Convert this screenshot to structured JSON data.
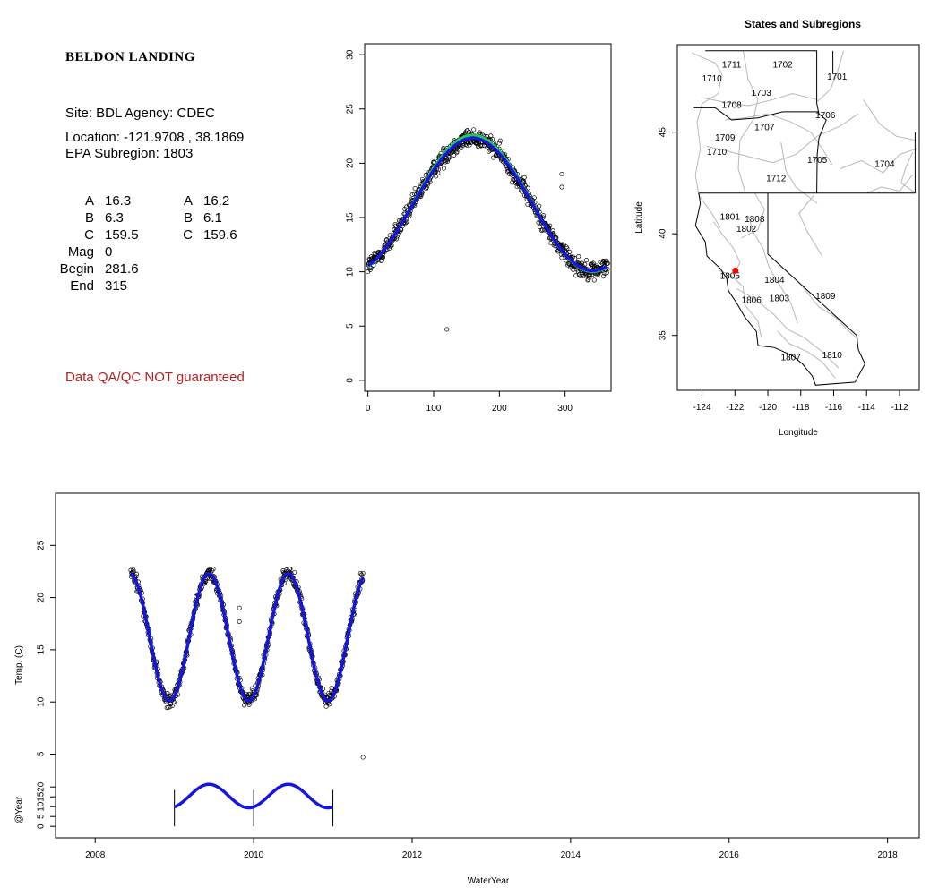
{
  "site": {
    "name": "BELDON LANDING",
    "site_line": "Site: BDL     Agency: CDEC",
    "location_line": "Location: -121.9708 , 38.1869",
    "subregion_line": "EPA Subregion: 1803",
    "disclaimer": "Data QA/QC NOT guaranteed"
  },
  "params": {
    "rows": [
      {
        "label": "A",
        "v1": "16.3",
        "label2": "A",
        "v2": "16.2"
      },
      {
        "label": "B",
        "v1": "6.3",
        "label2": "B",
        "v2": "6.1"
      },
      {
        "label": "C",
        "v1": "159.5",
        "label2": "C",
        "v2": "159.6"
      },
      {
        "label": "Mag",
        "v1": "0",
        "label2": "",
        "v2": ""
      },
      {
        "label": "Begin",
        "v1": "281.6",
        "label2": "",
        "v2": ""
      },
      {
        "label": "End",
        "v1": "315",
        "label2": "",
        "v2": ""
      }
    ]
  },
  "colors": {
    "fit_blue": "#1515e0",
    "fit_green": "#22c55e",
    "site_marker": "#ff0000",
    "disclaimer": "#b22222",
    "region_border": "#b8b8b8",
    "state_border": "#000000"
  },
  "chart_data": [
    {
      "id": "annual-scatter",
      "type": "scatter",
      "title": "",
      "xlabel": "",
      "ylabel": "",
      "xlim": [
        -5,
        370
      ],
      "ylim": [
        -1,
        31
      ],
      "xticks": [
        0,
        100,
        200,
        300
      ],
      "yticks": [
        0,
        5,
        10,
        15,
        20,
        25,
        30
      ],
      "fit_blue": {
        "A": 16.2,
        "B": 6.1,
        "C": 159.6
      },
      "fit_green": {
        "A": 16.3,
        "B": 6.3,
        "C": 159.5
      },
      "noise": 1.1,
      "outliers": [
        [
          120,
          4.7
        ],
        [
          295,
          12.4
        ],
        [
          295,
          17.8
        ],
        [
          295,
          19.0
        ]
      ],
      "fit_range": [
        0,
        365
      ],
      "points_range": [
        0,
        365
      ]
    },
    {
      "id": "subregion-map",
      "type": "map",
      "title": "States and Subregions",
      "xlabel": "Longitude",
      "ylabel": "Latitude",
      "xlim": [
        -125.5,
        -110.8
      ],
      "ylim": [
        32.3,
        49.3
      ],
      "xticks": [
        -124,
        -122,
        -120,
        -118,
        -116,
        -114,
        -112
      ],
      "yticks": [
        35,
        40,
        45
      ],
      "site": {
        "lon": -121.9708,
        "lat": 38.1869
      },
      "region_labels": [
        {
          "text": "1702",
          "lon": -119.1,
          "lat": 48.3
        },
        {
          "text": "1701",
          "lon": -115.8,
          "lat": 47.7
        },
        {
          "text": "1711",
          "lon": -122.2,
          "lat": 48.3
        },
        {
          "text": "1710",
          "lon": -123.4,
          "lat": 47.6
        },
        {
          "text": "1703",
          "lon": -120.4,
          "lat": 46.9
        },
        {
          "text": "1708",
          "lon": -122.2,
          "lat": 46.3
        },
        {
          "text": "1706",
          "lon": -116.5,
          "lat": 45.8
        },
        {
          "text": "1707",
          "lon": -120.2,
          "lat": 45.2
        },
        {
          "text": "1709",
          "lon": -122.6,
          "lat": 44.7
        },
        {
          "text": "1710",
          "lon": -123.1,
          "lat": 44.0
        },
        {
          "text": "1705",
          "lon": -117.0,
          "lat": 43.6
        },
        {
          "text": "1704",
          "lon": -112.9,
          "lat": 43.4
        },
        {
          "text": "1712",
          "lon": -119.5,
          "lat": 42.7
        },
        {
          "text": "1801",
          "lon": -122.3,
          "lat": 40.8
        },
        {
          "text": "1808",
          "lon": -120.8,
          "lat": 40.7
        },
        {
          "text": "1802",
          "lon": -121.3,
          "lat": 40.2
        },
        {
          "text": "1805",
          "lon": -122.3,
          "lat": 37.9
        },
        {
          "text": "1804",
          "lon": -119.6,
          "lat": 37.7
        },
        {
          "text": "1806",
          "lon": -121.0,
          "lat": 36.7
        },
        {
          "text": "1803",
          "lon": -119.3,
          "lat": 36.8
        },
        {
          "text": "1809",
          "lon": -116.5,
          "lat": 36.9
        },
        {
          "text": "1807",
          "lon": -118.6,
          "lat": 33.9
        },
        {
          "text": "1810",
          "lon": -116.1,
          "lat": 34.0
        }
      ]
    },
    {
      "id": "timeseries",
      "type": "line",
      "title": "",
      "xlabel": "WaterYear",
      "ylabel": "Temp. (C)",
      "xlim": [
        2007.5,
        2018.4
      ],
      "ylim": [
        3.5,
        30
      ],
      "xticks": [
        2008,
        2010,
        2012,
        2014,
        2016,
        2018
      ],
      "yticks": [
        5,
        10,
        15,
        20,
        25
      ],
      "data_range": [
        2008.45,
        2011.38
      ],
      "fit": {
        "A": 16.2,
        "B": 6.1,
        "C": 159.6
      },
      "noise": 1.0,
      "outliers": [
        [
          2009.82,
          12.3
        ],
        [
          2009.82,
          17.7
        ],
        [
          2009.82,
          19.0
        ],
        [
          2011.38,
          4.7
        ]
      ]
    },
    {
      "id": "year-strip",
      "type": "line",
      "title": "",
      "xlabel": "",
      "ylabel": "@Year",
      "ylim": [
        -4,
        26
      ],
      "yticks": [
        0,
        5,
        10,
        15,
        20
      ],
      "vlines": [
        2009.0,
        2010.0,
        2011.0
      ],
      "curve_range": [
        2009.0,
        2011.0
      ]
    }
  ]
}
